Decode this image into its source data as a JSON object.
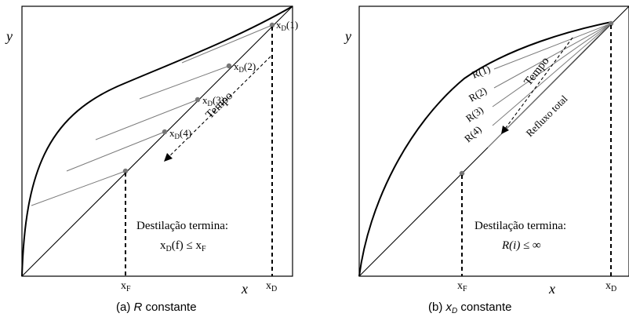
{
  "panel_a": {
    "y_label": "y",
    "x_label": "x",
    "xF_label": {
      "base": "x",
      "sub": "F"
    },
    "xD_label": {
      "base": "x",
      "sub": "D"
    },
    "points": [
      {
        "base": "x",
        "sub": "D",
        "arg": "(1)"
      },
      {
        "base": "x",
        "sub": "D",
        "arg": "(2)"
      },
      {
        "base": "x",
        "sub": "D",
        "arg": "(3)"
      },
      {
        "base": "x",
        "sub": "D",
        "arg": "(4)"
      }
    ],
    "arrow_label": "Tempo",
    "note_line1": "Destilação termina:",
    "note_line2": {
      "pre": "x",
      "sub": "D",
      "post": "(f) ≤ x",
      "sub2": "F"
    },
    "caption": {
      "prefix": "(a) ",
      "var": "R",
      "suffix": " constante"
    }
  },
  "panel_b": {
    "y_label": "y",
    "x_label": "x",
    "xF_label": {
      "base": "x",
      "sub": "F"
    },
    "xD_label": {
      "base": "x",
      "sub": "D"
    },
    "ratios": [
      "R(1)",
      "R(2)",
      "R(3)",
      "R(4)"
    ],
    "arrow_label": "Tempo",
    "total_reflux_label": "Refluxo total",
    "note_line1": "Destilação termina:",
    "note_line2": "R(i) ≤ ∞",
    "caption": {
      "prefix": "(b) ",
      "var": "x",
      "sub": "D",
      "suffix": " constante"
    }
  }
}
